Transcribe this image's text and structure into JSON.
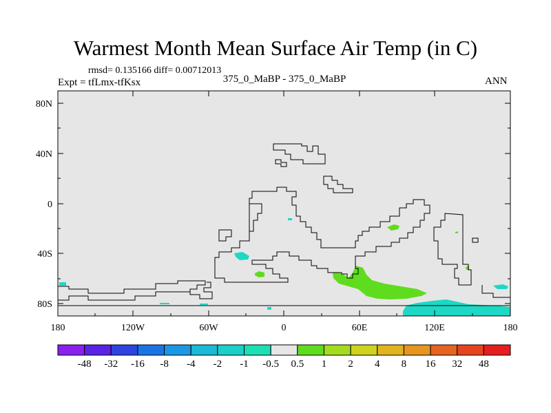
{
  "title": "Warmest Month Mean Surface Air Temp (in C)",
  "stats": "rmsd= 0.135166 diff= 0.00712013",
  "experiment": "Expt = tfLmx-tfKsx",
  "comparison": "375_0_MaBP - 375_0_MaBP",
  "season": "ANN",
  "lat_ticks": [
    "80N",
    "40N",
    "0",
    "40S",
    "80S"
  ],
  "lon_ticks": [
    "180",
    "120W",
    "60W",
    "0",
    "60E",
    "120E",
    "180"
  ],
  "colorbar": {
    "labels": [
      "-48",
      "-32",
      "-16",
      "-8",
      "-4",
      "-2",
      "-1",
      "-0.5",
      "0.5",
      "1",
      "2",
      "4",
      "8",
      "16",
      "32",
      "48"
    ],
    "colors": [
      "#8a1ff0",
      "#5a22e6",
      "#2e44e0",
      "#1b74e6",
      "#1a98e6",
      "#1ab9d8",
      "#1ad0c8",
      "#1ce0b4",
      "#e6e6e6",
      "#5fdc1e",
      "#a3dc1e",
      "#cfd21e",
      "#e0b41e",
      "#e6961e",
      "#e6641e",
      "#e6441e",
      "#e61e1e"
    ]
  },
  "colors": {
    "land_background": "#e6e6e6",
    "positive_anomaly": "#5fdc1e",
    "negative_anomaly": "#1cd8c4"
  }
}
